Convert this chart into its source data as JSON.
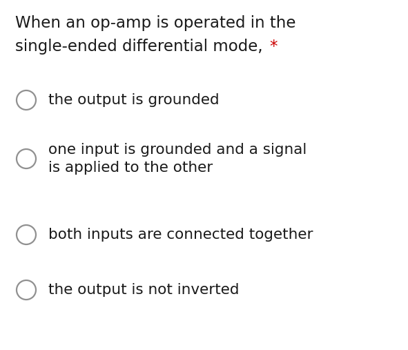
{
  "background_color": "#ffffff",
  "question_line1": "When an op-amp is operated in the",
  "question_line2": "single-ended differential mode, ",
  "asterisk": "*",
  "asterisk_color": "#cc0000",
  "question_color": "#1a1a1a",
  "question_fontsize": 16.5,
  "option_color": "#1a1a1a",
  "option_fontsize": 15.5,
  "circle_color": "#909090",
  "circle_lw": 1.6,
  "options": [
    {
      "lines": [
        "the output is grounded"
      ],
      "two_line": false
    },
    {
      "lines": [
        "one input is grounded and a signal",
        "is applied to the other"
      ],
      "two_line": true
    },
    {
      "lines": [
        "both inputs are connected together"
      ],
      "two_line": false
    },
    {
      "lines": [
        "the output is not inverted"
      ],
      "two_line": false
    }
  ]
}
